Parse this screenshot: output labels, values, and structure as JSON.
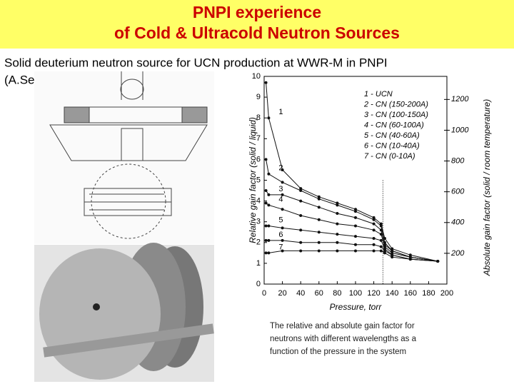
{
  "header": {
    "title": [
      "PNPI experience",
      "of Cold & Ultracold Neutron Sources"
    ]
  },
  "subtitle": [
    "Solid deuterium neutron source for UCN production at WWR-M in PNPI",
    "(A.Serebrov)"
  ],
  "caption": [
    "The relative and absolute gain factor for",
    "neutrons with different wavelengths as a",
    "function of the pressure in the system"
  ],
  "chart_data": {
    "type": "line",
    "x_label": "Pressure, torr",
    "y_label": "Relative gain factor (solid / liquid)",
    "y2_label": "Absolute gain factor (solid / room temperature)",
    "x": [
      2,
      5,
      20,
      40,
      60,
      80,
      100,
      120,
      128,
      132,
      140,
      160,
      190
    ],
    "xlim": [
      0,
      200
    ],
    "xticks": [
      0,
      20,
      40,
      60,
      80,
      100,
      120,
      140,
      160,
      180,
      200
    ],
    "ylim": [
      0,
      10
    ],
    "yticks": [
      0,
      1,
      2,
      3,
      4,
      5,
      6,
      7,
      8,
      9,
      10
    ],
    "y2lim": [
      0,
      1350
    ],
    "y2ticks": [
      200,
      400,
      600,
      800,
      1000,
      1200
    ],
    "vline": 130,
    "curve_labels": [
      "1",
      "2",
      "3",
      "4",
      "5",
      "6",
      "7"
    ],
    "series": [
      {
        "name": "1 - UCN",
        "color": "#111111",
        "values": [
          9.7,
          8.0,
          5.5,
          4.6,
          4.2,
          3.9,
          3.6,
          3.2,
          2.9,
          2.2,
          1.7,
          1.4,
          1.1
        ]
      },
      {
        "name": "2 - CN (150-200A)",
        "color": "#111111",
        "values": [
          6.0,
          5.3,
          4.9,
          4.5,
          4.1,
          3.8,
          3.5,
          3.1,
          2.8,
          2.0,
          1.6,
          1.3,
          1.1
        ]
      },
      {
        "name": "3 - CN (100-150A)",
        "color": "#111111",
        "values": [
          4.5,
          4.3,
          4.3,
          4.0,
          3.7,
          3.4,
          3.2,
          2.9,
          2.6,
          1.9,
          1.6,
          1.3,
          1.1
        ]
      },
      {
        "name": "4 - CN (60-100A)",
        "color": "#111111",
        "values": [
          3.9,
          3.8,
          3.6,
          3.3,
          3.1,
          2.9,
          2.8,
          2.6,
          2.4,
          1.8,
          1.5,
          1.3,
          1.1
        ]
      },
      {
        "name": "5 - CN (40-60A)",
        "color": "#111111",
        "values": [
          2.8,
          2.8,
          2.7,
          2.6,
          2.5,
          2.4,
          2.3,
          2.2,
          2.1,
          1.7,
          1.4,
          1.2,
          1.1
        ]
      },
      {
        "name": "6 - CN (10-40A)",
        "color": "#111111",
        "values": [
          2.1,
          2.1,
          2.1,
          2.0,
          2.0,
          2.0,
          1.9,
          1.9,
          1.8,
          1.6,
          1.4,
          1.2,
          1.1
        ]
      },
      {
        "name": "7 - CN (0-10A)",
        "color": "#111111",
        "values": [
          1.5,
          1.5,
          1.6,
          1.6,
          1.6,
          1.6,
          1.6,
          1.6,
          1.6,
          1.5,
          1.3,
          1.2,
          1.1
        ]
      }
    ]
  }
}
